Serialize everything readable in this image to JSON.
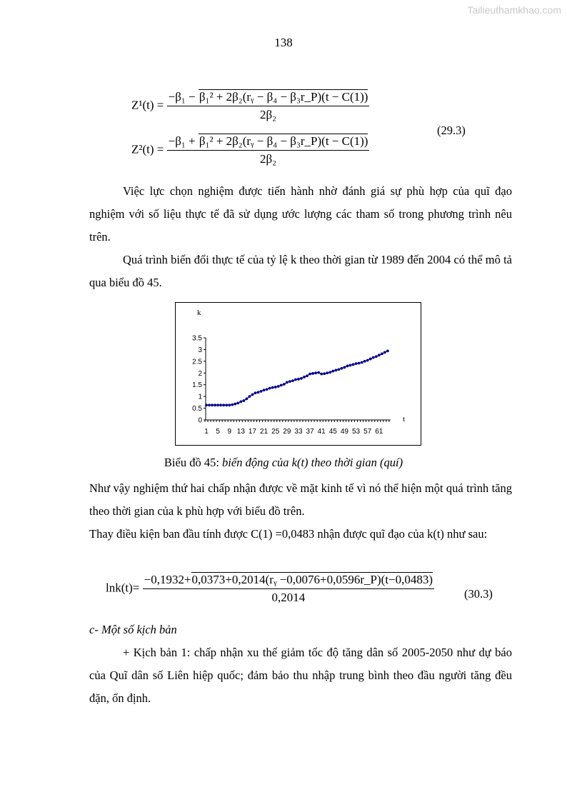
{
  "watermark": "Tailieuthamkhao.com",
  "page_number": "138",
  "equations": {
    "z1_lhs": "Z¹(t) =",
    "z1_num_a": "−β₁ − ",
    "z1_num_sqrt": "β₁² + 2β₂(rᵧ − β₄ − β₃r_P)(t − C(1))",
    "z1_den": "2β₂",
    "z2_lhs": "Z²(t) =",
    "z2_num_a": "−β₁ + ",
    "z2_num_sqrt": "β₁² + 2β₂(rᵧ − β₄ − β₃r_P)(t − C(1))",
    "z2_den": "2β₂",
    "eq1_number": "(29.3)",
    "lnk_lhs": "lnk(t)=",
    "lnk_num_a": "−0,1932+",
    "lnk_num_sqrt": "0,0373+0,2014(rᵧ −0,0076+0,0596r_P)(t−0,0483)",
    "lnk_den": "0,2014",
    "eq2_number": "(30.3)"
  },
  "paragraphs": {
    "p1": "Việc lực chọn nghiệm được tiến hành nhờ đánh giá sự phù hợp của quĩ đạo nghiệm với số liệu thực tế đã sử dụng ước lượng các tham số trong phương trình nêu trên.",
    "p2": "Quá trình biến đổi thực tế của tỷ lệ k theo thời gian từ 1989 đến 2004 có thể mô tả qua biểu đồ 45.",
    "caption_prefix": "Biểu đồ 45:",
    "caption_italic": "biến động của k(t) theo thời gian (quí)",
    "p3": "Như vậy nghiệm thứ hai chấp nhận được về mặt kinh tế vì nó thể hiện một quá trình tăng theo thời gian của k phù hợp với biểu đồ trên.",
    "p4": "Thay điều kiện ban đầu tính được C(1) =0,0483 nhận được quĩ đạo của k(t) như sau:",
    "section": "c- Một số kịch bản",
    "p5": "+ Kịch bản 1: chấp nhận xu thế giảm tốc độ tăng dân số 2005-2050 như dự báo của Quĩ dân số Liên hiệp quốc; đảm bảo thu nhập trung bình theo đầu người tăng đều đặn, ổn định."
  },
  "chart_data": {
    "type": "line",
    "ylabel": "k",
    "xlabel": "t",
    "ylim": [
      0,
      3.5
    ],
    "yticks": [
      "0",
      "0.5",
      "1",
      "1.5",
      "2",
      "2.5",
      "3",
      "3.5"
    ],
    "xticks": [
      "1",
      "5",
      "9",
      "13",
      "17",
      "21",
      "25",
      "29",
      "33",
      "37",
      "41",
      "45",
      "49",
      "53",
      "57",
      "61"
    ],
    "color": "#00008b",
    "grid": false,
    "x": [
      1,
      2,
      3,
      4,
      5,
      6,
      7,
      8,
      9,
      10,
      11,
      12,
      13,
      14,
      15,
      16,
      17,
      18,
      19,
      20,
      21,
      22,
      23,
      24,
      25,
      26,
      27,
      28,
      29,
      30,
      31,
      32,
      33,
      34,
      35,
      36,
      37,
      38,
      39,
      40,
      41,
      42,
      43,
      44,
      45,
      46,
      47,
      48,
      49,
      50,
      51,
      52,
      53,
      54,
      55,
      56,
      57,
      58,
      59,
      60,
      61,
      62,
      63,
      64
    ],
    "values": [
      0.63,
      0.63,
      0.63,
      0.63,
      0.63,
      0.63,
      0.63,
      0.63,
      0.63,
      0.65,
      0.68,
      0.72,
      0.78,
      0.82,
      0.9,
      1.0,
      1.08,
      1.15,
      1.18,
      1.22,
      1.27,
      1.3,
      1.35,
      1.38,
      1.4,
      1.43,
      1.48,
      1.52,
      1.6,
      1.64,
      1.67,
      1.72,
      1.74,
      1.77,
      1.83,
      1.88,
      1.96,
      1.98,
      2.0,
      2.02,
      1.96,
      1.97,
      2.0,
      2.03,
      2.08,
      2.12,
      2.15,
      2.2,
      2.24,
      2.3,
      2.33,
      2.36,
      2.4,
      2.42,
      2.45,
      2.5,
      2.54,
      2.6,
      2.66,
      2.7,
      2.76,
      2.82,
      2.88,
      2.94
    ]
  }
}
